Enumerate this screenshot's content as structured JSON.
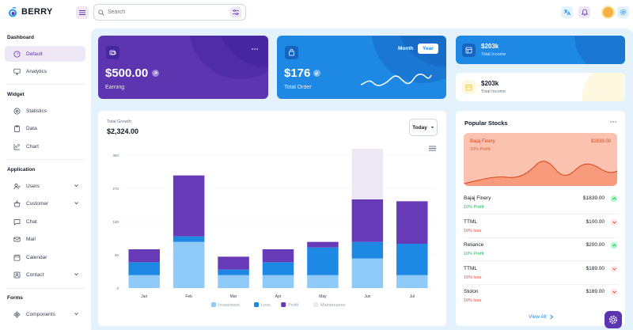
{
  "app": {
    "name": "BERRY"
  },
  "search": {
    "placeholder": "Search"
  },
  "sidebar": {
    "sections": [
      {
        "title": "Dashboard"
      },
      {
        "title": "Widget"
      },
      {
        "title": "Application"
      },
      {
        "title": "Forms"
      }
    ],
    "items": [
      {
        "label": "Default",
        "icon": "dashboard-icon"
      },
      {
        "label": "Analytics",
        "icon": "device-analytics-icon"
      },
      {
        "label": "Statistics",
        "icon": "chart-arcs-icon"
      },
      {
        "label": "Data",
        "icon": "clipboard-icon"
      },
      {
        "label": "Chart",
        "icon": "chart-dots-icon"
      },
      {
        "label": "Users",
        "icon": "user-check-icon"
      },
      {
        "label": "Customer",
        "icon": "basket-icon"
      },
      {
        "label": "Chat",
        "icon": "message-icon"
      },
      {
        "label": "Mail",
        "icon": "mail-icon"
      },
      {
        "label": "Calendar",
        "icon": "calendar-icon"
      },
      {
        "label": "Contact",
        "icon": "contact-icon"
      },
      {
        "label": "Components",
        "icon": "components-icon"
      }
    ]
  },
  "cards": {
    "earning": {
      "value": "$500.00",
      "label": "Earning"
    },
    "order": {
      "value": "$176",
      "label": "Total Order",
      "toggle": [
        "Month",
        "Year"
      ]
    },
    "income_blue": {
      "value": "$203k",
      "label": "Total Income"
    },
    "income_light": {
      "value": "$203k",
      "label": "Total Income"
    }
  },
  "growth": {
    "title": "Total Growth",
    "total": "$2,324.00",
    "period": "Today"
  },
  "chart_data": {
    "type": "bar",
    "stacked": true,
    "categories": [
      "Jan",
      "Feb",
      "Mar",
      "Apr",
      "May",
      "Jun",
      "Jul"
    ],
    "series": [
      {
        "name": "Investment",
        "color": "#90caf9",
        "values": [
          35,
          125,
          35,
          35,
          35,
          80,
          35
        ]
      },
      {
        "name": "Loss",
        "color": "#1e88e5",
        "values": [
          35,
          15,
          15,
          35,
          75,
          45,
          85
        ]
      },
      {
        "name": "Profit",
        "color": "#673ab7",
        "values": [
          35,
          165,
          35,
          35,
          15,
          115,
          115
        ]
      },
      {
        "name": "Maintenance",
        "color": "#ede7f6",
        "values": [
          0,
          0,
          0,
          0,
          0,
          150,
          0
        ]
      }
    ],
    "yticks": [
      "0",
      "90",
      "180",
      "270",
      "360"
    ],
    "ylim": [
      0,
      360
    ]
  },
  "stocks": {
    "title": "Popular Stocks",
    "featured": {
      "name": "Bajaj Finery",
      "sub": "10% Profit",
      "price": "$1839.00"
    },
    "rows": [
      {
        "name": "Bajaj Finery",
        "sub": "10% Profit",
        "price": "$1839.00",
        "trend": "up"
      },
      {
        "name": "TTML",
        "sub": "10% loss",
        "price": "$100.00",
        "trend": "down"
      },
      {
        "name": "Reliance",
        "sub": "10% Profit",
        "price": "$200.00",
        "trend": "up"
      },
      {
        "name": "TTML",
        "sub": "10% loss",
        "price": "$189.00",
        "trend": "down"
      },
      {
        "name": "Stolon",
        "sub": "10% loss",
        "price": "$189.00",
        "trend": "down"
      }
    ],
    "view_all": "View All"
  },
  "colors": {
    "primary": "#5e35b1",
    "secondary": "#1e88e5",
    "success": "#00c853",
    "error": "#f44336",
    "stock_bg": "#fbc2b0"
  }
}
